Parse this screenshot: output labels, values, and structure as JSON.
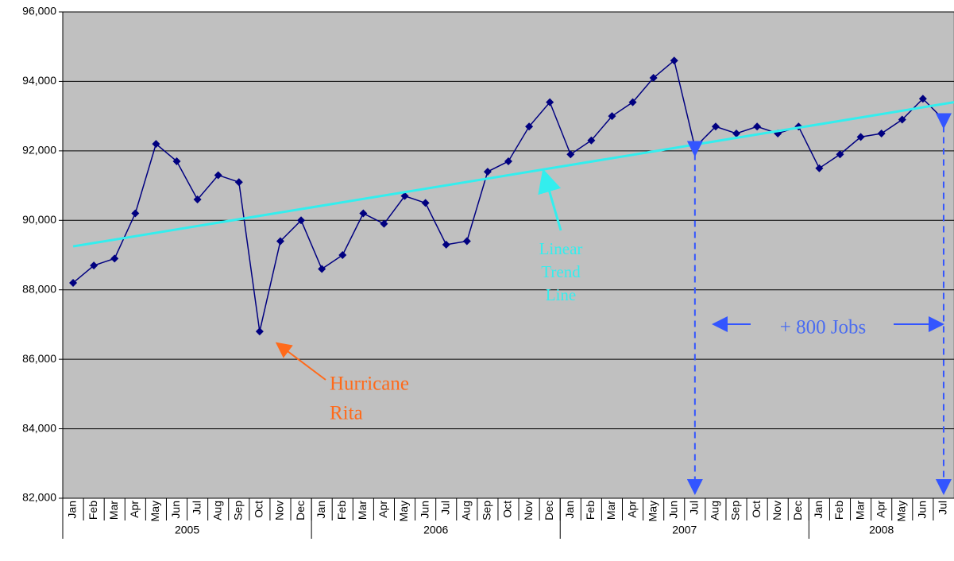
{
  "chart_data": {
    "type": "line",
    "categories": [
      "Jan",
      "Feb",
      "Mar",
      "Apr",
      "May",
      "Jun",
      "Jul",
      "Aug",
      "Sep",
      "Oct",
      "Nov",
      "Dec",
      "Jan",
      "Feb",
      "Mar",
      "Apr",
      "May",
      "Jun",
      "Jul",
      "Aug",
      "Sep",
      "Oct",
      "Nov",
      "Dec",
      "Jan",
      "Feb",
      "Mar",
      "Apr",
      "May",
      "Jun",
      "Jul",
      "Aug",
      "Sep",
      "Oct",
      "Nov",
      "Dec",
      "Jan",
      "Feb",
      "Mar",
      "Apr",
      "May",
      "Jun",
      "Jul"
    ],
    "groups": [
      "2005",
      "2006",
      "2007",
      "2008"
    ],
    "series": [
      {
        "color": "#000080",
        "values": [
          88200,
          88700,
          88900,
          90200,
          92200,
          91700,
          90600,
          91300,
          91100,
          86800,
          89400,
          90000,
          88600,
          89000,
          90200,
          89900,
          90700,
          90500,
          89300,
          89400,
          91400,
          91700,
          92700,
          93400,
          91900,
          92300,
          93000,
          93400,
          94100,
          94600,
          92100,
          92700,
          92500,
          92700,
          92500,
          92700,
          91500,
          91900,
          92400,
          92500,
          92900,
          93500,
          92900
        ]
      }
    ],
    "trendline": {
      "color": "#33eeee",
      "values": [
        89250,
        93400
      ]
    },
    "ylim": [
      82000,
      96000
    ],
    "yticks": [
      {
        "value": 82000,
        "label": "82,000"
      },
      {
        "value": 84000,
        "label": "84,000"
      },
      {
        "value": 86000,
        "label": "86,000"
      },
      {
        "value": 88000,
        "label": "88,000"
      },
      {
        "value": 90000,
        "label": "90,000"
      },
      {
        "value": 92000,
        "label": "92,000"
      },
      {
        "value": 94000,
        "label": "94,000"
      },
      {
        "value": 96000,
        "label": "96,000"
      }
    ],
    "grid": true,
    "annotations": {
      "hurricane": [
        "Hurricane",
        "Rita"
      ],
      "trend": [
        "Linear",
        "Trend",
        "Line"
      ],
      "jobs": "+ 800 Jobs"
    }
  }
}
